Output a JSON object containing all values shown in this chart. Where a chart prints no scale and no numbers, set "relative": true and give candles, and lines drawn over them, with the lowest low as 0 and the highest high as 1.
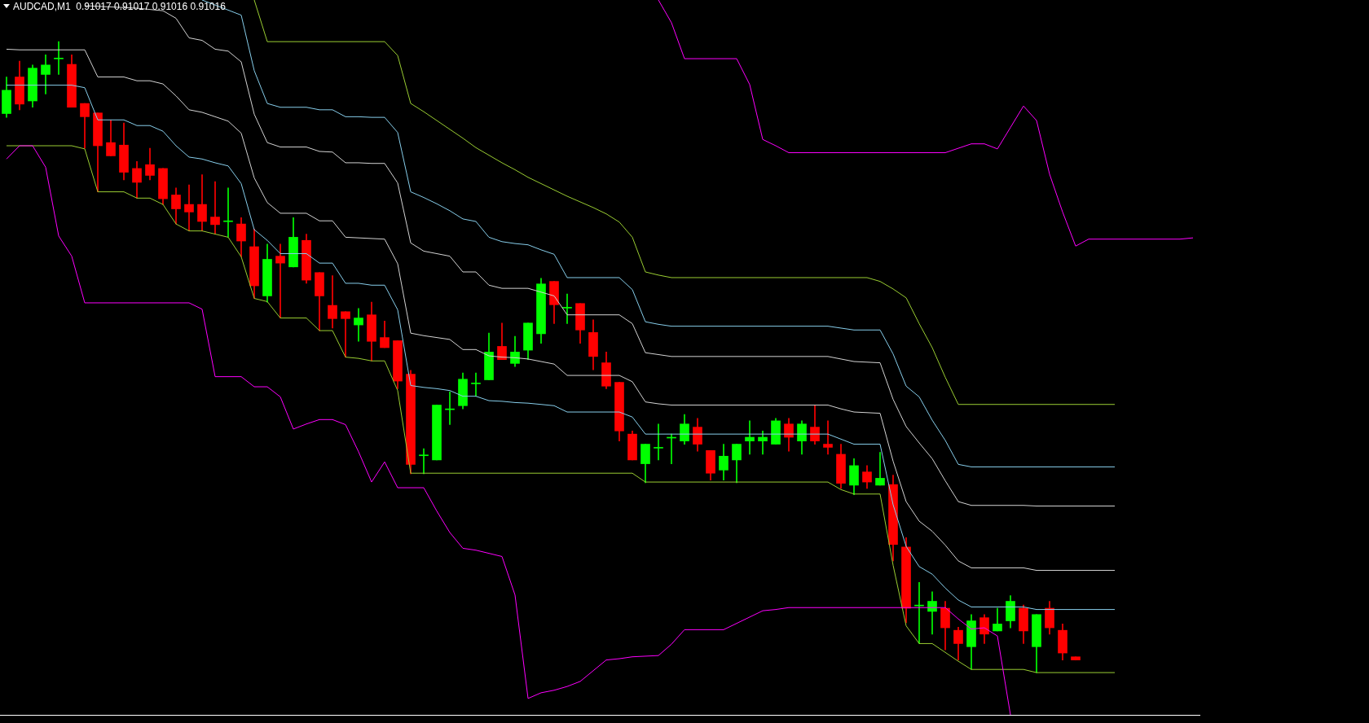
{
  "chart_data": {
    "type": "candlestick",
    "title": "AUDCAD,M1  0.91017 0.91017 0.91016 0.91016",
    "relative": true,
    "tick_labels": false,
    "categories": [
      null,
      null,
      null,
      null,
      null,
      null,
      null,
      null,
      null,
      null,
      null,
      null,
      null,
      null,
      null,
      null,
      null,
      null,
      null,
      null,
      null,
      null,
      null,
      null,
      null,
      null,
      null,
      null,
      null,
      null,
      null,
      null,
      null,
      null,
      null,
      null,
      null,
      null,
      null,
      null,
      null,
      null,
      null,
      null,
      null,
      null,
      null,
      null,
      null,
      null,
      null,
      null,
      null,
      null,
      null,
      null,
      null,
      null,
      null,
      null,
      null,
      null,
      null,
      null,
      null,
      null,
      null,
      null,
      null,
      null,
      null,
      null,
      null,
      null,
      null,
      null,
      null,
      null,
      null,
      null,
      null,
      null,
      null,
      null,
      null,
      null,
      null,
      null,
      null,
      null,
      null,
      null
    ],
    "ohlc": [
      [
        0.886,
        0.944,
        0.88,
        0.923
      ],
      [
        0.944,
        0.969,
        0.892,
        0.901
      ],
      [
        0.906,
        0.963,
        0.896,
        0.958
      ],
      [
        0.948,
        0.979,
        0.917,
        0.963
      ],
      [
        0.974,
        1,
        0.948,
        0.974
      ],
      [
        0.964,
        0.979,
        0.896,
        0.896
      ],
      [
        0.902,
        0.902,
        0.831,
        0.881
      ],
      [
        0.887,
        0.887,
        0.762,
        0.835
      ],
      [
        0.84,
        0.876,
        0.819,
        0.819
      ],
      [
        0.836,
        0.871,
        0.781,
        0.793
      ],
      [
        0.799,
        0.81,
        0.752,
        0.777
      ],
      [
        0.805,
        0.831,
        0.781,
        0.788
      ],
      [
        0.799,
        0.799,
        0.742,
        0.751
      ],
      [
        0.757,
        0.768,
        0.711,
        0.735
      ],
      [
        0.742,
        0.773,
        0.7,
        0.73
      ],
      [
        0.742,
        0.789,
        0.7,
        0.715
      ],
      [
        0.722,
        0.778,
        0.695,
        0.71
      ],
      [
        0.716,
        0.768,
        0.69,
        0.716
      ],
      [
        0.711,
        0.721,
        0.659,
        0.684
      ],
      [
        0.675,
        0.703,
        0.593,
        0.613
      ],
      [
        0.597,
        0.679,
        0.587,
        0.655
      ],
      [
        0.66,
        0.679,
        0.562,
        0.649
      ],
      [
        0.643,
        0.721,
        0.643,
        0.69
      ],
      [
        0.685,
        0.695,
        0.617,
        0.622
      ],
      [
        0.634,
        0.634,
        0.542,
        0.597
      ],
      [
        0.582,
        0.629,
        0.546,
        0.561
      ],
      [
        0.572,
        0.572,
        0.5,
        0.561
      ],
      [
        0.551,
        0.577,
        0.525,
        0.562
      ],
      [
        0.567,
        0.587,
        0.494,
        0.525
      ],
      [
        0.531,
        0.557,
        0.515,
        0.515
      ],
      [
        0.526,
        0.526,
        0.45,
        0.462
      ],
      [
        0.473,
        0.479,
        0.315,
        0.33
      ],
      [
        0.345,
        0.355,
        0.315,
        0.345
      ],
      [
        0.337,
        0.424,
        0.337,
        0.424
      ],
      [
        0.418,
        0.445,
        0.393,
        0.418
      ],
      [
        0.423,
        0.475,
        0.418,
        0.465
      ],
      [
        0.459,
        0.475,
        0.438,
        0.459
      ],
      [
        0.464,
        0.538,
        0.464,
        0.508
      ],
      [
        0.517,
        0.554,
        0.496,
        0.496
      ],
      [
        0.49,
        0.533,
        0.485,
        0.508
      ],
      [
        0.511,
        0.554,
        0.496,
        0.554
      ],
      [
        0.537,
        0.625,
        0.522,
        0.616
      ],
      [
        0.62,
        0.62,
        0.553,
        0.583
      ],
      [
        0.579,
        0.6,
        0.553,
        0.579
      ],
      [
        0.585,
        0.585,
        0.522,
        0.543
      ],
      [
        0.539,
        0.559,
        0.48,
        0.501
      ],
      [
        0.491,
        0.508,
        0.45,
        0.454
      ],
      [
        0.46,
        0.46,
        0.367,
        0.383
      ],
      [
        0.378,
        0.383,
        0.337,
        0.337
      ],
      [
        0.331,
        0.362,
        0.301,
        0.362
      ],
      [
        0.357,
        0.394,
        0.337,
        0.357
      ],
      [
        0.373,
        0.378,
        0.331,
        0.373
      ],
      [
        0.367,
        0.409,
        0.362,
        0.394
      ],
      [
        0.389,
        0.403,
        0.351,
        0.362
      ],
      [
        0.352,
        0.352,
        0.305,
        0.316
      ],
      [
        0.321,
        0.362,
        0.305,
        0.343
      ],
      [
        0.337,
        0.362,
        0.301,
        0.362
      ],
      [
        0.367,
        0.399,
        0.346,
        0.373
      ],
      [
        0.367,
        0.383,
        0.346,
        0.373
      ],
      [
        0.362,
        0.403,
        0.362,
        0.399
      ],
      [
        0.394,
        0.403,
        0.351,
        0.373
      ],
      [
        0.367,
        0.399,
        0.346,
        0.394
      ],
      [
        0.389,
        0.423,
        0.362,
        0.367
      ],
      [
        0.362,
        0.399,
        0.346,
        0.357
      ],
      [
        0.346,
        0.362,
        0.292,
        0.3
      ],
      [
        0.297,
        0.339,
        0.282,
        0.328
      ],
      [
        0.318,
        0.328,
        0.292,
        0.302
      ],
      [
        0.297,
        0.349,
        0.297,
        0.308
      ],
      [
        0.298,
        0.313,
        0.177,
        0.203
      ],
      [
        0.199,
        0.214,
        0.079,
        0.102
      ],
      [
        0.107,
        0.143,
        0.046,
        0.107
      ],
      [
        0.097,
        0.128,
        0.061,
        0.113
      ],
      [
        0.102,
        0.113,
        0.036,
        0.071
      ],
      [
        0.067,
        0.072,
        0.02,
        0.046
      ],
      [
        0.041,
        0.092,
        0.005,
        0.082
      ],
      [
        0.087,
        0.092,
        0.046,
        0.061
      ],
      [
        0.066,
        0.102,
        0.066,
        0.077
      ],
      [
        0.082,
        0.122,
        0.071,
        0.113
      ],
      [
        0.102,
        0.107,
        0.046,
        0.066
      ],
      [
        0.041,
        0.092,
        0,
        0.092
      ],
      [
        0.102,
        0.113,
        0.061,
        0.071
      ],
      [
        0.067,
        0.077,
        0.02,
        0.031
      ],
      [
        0.025,
        0.025,
        0.02,
        0.02
      ],
      null,
      null,
      null,
      null,
      null,
      null,
      null,
      null,
      null
    ],
    "colors": [
      "#00ff00",
      "#ff0000",
      "#00ff00",
      "#00ff00",
      "#00ff00",
      "#ff0000",
      "#ff0000",
      "#ff0000",
      "#ff0000",
      "#ff0000",
      "#ff0000",
      "#ff0000",
      "#ff0000",
      "#ff0000",
      "#ff0000",
      "#ff0000",
      "#ff0000",
      "#00ff00",
      "#ff0000",
      "#ff0000",
      "#00ff00",
      "#ff0000",
      "#00ff00",
      "#ff0000",
      "#ff0000",
      "#ff0000",
      "#ff0000",
      "#00ff00",
      "#ff0000",
      "#ff0000",
      "#ff0000",
      "#ff0000",
      "#00ff00",
      "#00ff00",
      "#00ff00",
      "#00ff00",
      "#00ff00",
      "#00ff00",
      "#ff0000",
      "#00ff00",
      "#00ff00",
      "#00ff00",
      "#ff0000",
      "#00ff00",
      "#ff0000",
      "#ff0000",
      "#ff0000",
      "#ff0000",
      "#ff0000",
      "#00ff00",
      "#00ff00",
      "#00ff00",
      "#00ff00",
      "#ff0000",
      "#ff0000",
      "#00ff00",
      "#00ff00",
      "#00ff00",
      "#00ff00",
      "#00ff00",
      "#ff0000",
      "#00ff00",
      "#ff0000",
      "#ff0000",
      "#ff0000",
      "#00ff00",
      "#ff0000",
      "#00ff00",
      "#ff0000",
      "#ff0000",
      "#00ff00",
      "#00ff00",
      "#ff0000",
      "#ff0000",
      "#00ff00",
      "#ff0000",
      "#00ff00",
      "#00ff00",
      "#ff0000",
      "#00ff00",
      "#ff0000",
      "#ff0000",
      "#ff0000",
      null,
      null,
      null,
      null,
      null,
      null,
      null,
      null,
      null
    ],
    "series": [
      {
        "type": "line",
        "color": "#ff00ff",
        "values": [
          0.814,
          0.835,
          0.835,
          0.801,
          0.692,
          0.66,
          0.586,
          0.586,
          0.586,
          0.586,
          0.586,
          0.586,
          0.586,
          0.586,
          0.586,
          0.576,
          0.469,
          0.469,
          0.469,
          0.453,
          0.453,
          0.437,
          0.386,
          0.394,
          0.401,
          0.401,
          0.393,
          0.35,
          0.302,
          0.334,
          0.293,
          0.293,
          0.293,
          0.256,
          0.222,
          0.197,
          0.194,
          0.189,
          0.184,
          0.123,
          -0.041,
          -0.032,
          -0.028,
          -0.022,
          -0.014,
          0.003,
          0.02,
          0.022,
          0.025,
          0.026,
          0.027,
          0.045,
          0.068,
          0.068,
          0.068,
          0.068,
          0.078,
          0.088,
          0.098,
          0.1,
          0.103,
          0.103,
          0.103,
          0.103,
          0.103,
          0.103,
          0.103,
          0.103,
          0.103,
          0.103,
          0.103,
          0.103,
          0.103,
          0.085,
          0.069,
          0.071,
          0.058,
          -0.067,
          null,
          null,
          null,
          null,
          null,
          null,
          null,
          null,
          null,
          null,
          null,
          null,
          null,
          null
        ]
      },
      {
        "type": "line",
        "color": "#9acd32",
        "values": [
          0.835,
          0.835,
          0.835,
          0.835,
          0.835,
          0.835,
          0.83,
          0.762,
          0.762,
          0.762,
          0.752,
          0.752,
          0.742,
          0.711,
          0.7,
          0.7,
          0.695,
          0.69,
          0.659,
          0.593,
          0.588,
          0.562,
          0.562,
          0.562,
          0.542,
          0.542,
          0.5,
          0.498,
          0.494,
          0.494,
          0.447,
          0.316,
          0.316,
          0.316,
          0.316,
          0.316,
          0.316,
          0.316,
          0.316,
          0.316,
          0.316,
          0.316,
          0.316,
          0.316,
          0.316,
          0.316,
          0.316,
          0.316,
          0.316,
          0.302,
          0.302,
          0.302,
          0.302,
          0.302,
          0.302,
          0.302,
          0.302,
          0.302,
          0.302,
          0.302,
          0.302,
          0.302,
          0.302,
          0.302,
          0.29,
          0.283,
          0.283,
          0.283,
          0.17,
          0.074,
          0.046,
          0.046,
          0.032,
          0.018,
          0.005,
          0.005,
          0.005,
          0.005,
          0.005,
          0,
          0,
          0,
          0,
          0,
          0,
          0,
          null,
          null,
          null,
          null,
          null,
          null
        ]
      },
      {
        "type": "line",
        "color": "#87ceeb",
        "values": [
          0.931,
          0.931,
          0.931,
          0.931,
          0.931,
          0.931,
          0.927,
          0.876,
          0.876,
          0.876,
          0.867,
          0.867,
          0.858,
          0.835,
          0.817,
          0.814,
          0.808,
          0.803,
          0.775,
          0.702,
          0.685,
          0.664,
          0.664,
          0.664,
          0.649,
          0.649,
          0.617,
          0.617,
          0.614,
          0.614,
          0.575,
          0.455,
          0.452,
          0.45,
          0.447,
          0.438,
          0.438,
          0.431,
          0.43,
          0.428,
          0.427,
          0.425,
          0.423,
          0.413,
          0.413,
          0.413,
          0.413,
          0.413,
          0.405,
          0.378,
          0.378,
          0.378,
          0.378,
          0.378,
          0.378,
          0.378,
          0.378,
          0.378,
          0.378,
          0.378,
          0.378,
          0.378,
          0.378,
          0.378,
          0.37,
          0.362,
          0.362,
          0.362,
          0.266,
          0.2,
          0.168,
          0.156,
          0.134,
          0.115,
          0.104,
          0.104,
          0.104,
          0.104,
          0.104,
          0.1,
          0.1,
          0.1,
          0.1,
          0.1,
          0.1,
          0.1,
          null,
          null,
          null,
          null,
          null,
          null
        ]
      },
      {
        "type": "line",
        "color": "#d3d3d3",
        "values": [
          0.988,
          0.987,
          0.987,
          0.987,
          0.987,
          0.987,
          0.987,
          0.944,
          0.944,
          0.944,
          0.938,
          0.938,
          0.933,
          0.914,
          0.892,
          0.888,
          0.881,
          0.874,
          0.855,
          0.784,
          0.745,
          0.728,
          0.728,
          0.728,
          0.716,
          0.716,
          0.69,
          0.689,
          0.688,
          0.687,
          0.648,
          0.538,
          0.534,
          0.531,
          0.528,
          0.512,
          0.512,
          0.502,
          0.5,
          0.499,
          0.497,
          0.493,
          0.489,
          0.471,
          0.471,
          0.471,
          0.471,
          0.471,
          0.461,
          0.429,
          0.426,
          0.424,
          0.424,
          0.424,
          0.424,
          0.424,
          0.424,
          0.424,
          0.424,
          0.424,
          0.424,
          0.424,
          0.424,
          0.424,
          0.418,
          0.413,
          0.412,
          0.411,
          0.335,
          0.271,
          0.24,
          0.224,
          0.202,
          0.177,
          0.166,
          0.166,
          0.166,
          0.166,
          0.166,
          0.162,
          0.162,
          0.162,
          0.162,
          0.162,
          0.162,
          0.162,
          null,
          null,
          null,
          null,
          null,
          null
        ]
      },
      {
        "type": "line",
        "color": "#d3d3d3",
        "values": [
          null,
          null,
          null,
          null,
          null,
          null,
          1.057,
          1.056,
          1.055,
          1.054,
          1.053,
          1.051,
          1.049,
          1.037,
          1.006,
          1.002,
          0.988,
          0.985,
          0.968,
          0.885,
          0.84,
          0.833,
          0.833,
          0.833,
          0.826,
          0.825,
          0.808,
          0.808,
          0.807,
          0.807,
          0.776,
          0.681,
          0.668,
          0.664,
          0.66,
          0.635,
          0.635,
          0.614,
          0.609,
          0.609,
          0.609,
          0.603,
          0.597,
          0.567,
          0.567,
          0.567,
          0.567,
          0.567,
          0.553,
          0.507,
          0.504,
          0.501,
          0.501,
          0.501,
          0.501,
          0.501,
          0.501,
          0.501,
          0.501,
          0.501,
          0.501,
          0.501,
          0.501,
          0.501,
          0.497,
          0.493,
          0.492,
          0.491,
          0.433,
          0.39,
          0.364,
          0.339,
          0.304,
          0.271,
          0.265,
          0.265,
          0.265,
          0.265,
          0.265,
          0.264,
          0.264,
          0.264,
          0.264,
          0.264,
          0.264,
          0.264,
          null,
          null,
          null,
          null,
          null,
          null
        ]
      },
      {
        "type": "line",
        "color": "#87ceeb",
        "values": [
          null,
          null,
          null,
          null,
          null,
          null,
          null,
          null,
          null,
          null,
          null,
          null,
          null,
          null,
          null,
          1.066,
          1.058,
          1.05,
          1.042,
          0.954,
          0.902,
          0.896,
          0.896,
          0.896,
          0.892,
          0.892,
          0.881,
          0.881,
          0.88,
          0.88,
          0.856,
          0.762,
          0.753,
          0.743,
          0.732,
          0.719,
          0.715,
          0.69,
          0.683,
          0.68,
          0.678,
          0.67,
          0.663,
          0.626,
          0.626,
          0.626,
          0.626,
          0.626,
          0.607,
          0.556,
          0.552,
          0.549,
          0.549,
          0.549,
          0.549,
          0.549,
          0.549,
          0.549,
          0.549,
          0.549,
          0.549,
          0.549,
          0.549,
          0.549,
          0.546,
          0.543,
          0.543,
          0.543,
          0.505,
          0.454,
          0.437,
          0.4,
          0.368,
          0.33,
          0.326,
          0.326,
          0.326,
          0.326,
          0.326,
          0.326,
          0.326,
          0.326,
          0.326,
          0.326,
          0.326,
          0.326,
          null,
          null,
          null,
          null,
          null,
          null
        ]
      },
      {
        "type": "line",
        "color": "#9acd32",
        "values": [
          null,
          null,
          null,
          null,
          null,
          null,
          null,
          null,
          null,
          null,
          null,
          null,
          null,
          null,
          null,
          null,
          null,
          null,
          null,
          1.066,
          1.0,
          1.0,
          1.0,
          1.0,
          1.0,
          1.0,
          1.0,
          1.0,
          1.0,
          1.0,
          0.978,
          0.902,
          0.889,
          0.875,
          0.861,
          0.847,
          0.832,
          0.82,
          0.808,
          0.797,
          0.785,
          0.775,
          0.765,
          0.755,
          0.746,
          0.737,
          0.727,
          0.714,
          0.69,
          0.635,
          0.63,
          0.626,
          0.626,
          0.626,
          0.626,
          0.626,
          0.626,
          0.626,
          0.626,
          0.626,
          0.626,
          0.626,
          0.626,
          0.626,
          0.626,
          0.626,
          0.626,
          0.62,
          0.608,
          0.594,
          0.553,
          0.515,
          0.468,
          0.425,
          0.425,
          0.425,
          0.425,
          0.425,
          0.425,
          0.425,
          0.425,
          0.425,
          0.425,
          0.425,
          0.425,
          0.425,
          null,
          null,
          null,
          null,
          null,
          null
        ]
      },
      {
        "type": "line",
        "color": "#ff00ff",
        "values": [
          null,
          null,
          null,
          null,
          null,
          null,
          null,
          null,
          null,
          null,
          null,
          null,
          null,
          null,
          null,
          null,
          null,
          null,
          null,
          null,
          null,
          null,
          null,
          null,
          null,
          null,
          null,
          null,
          null,
          null,
          null,
          null,
          null,
          null,
          null,
          null,
          null,
          null,
          null,
          null,
          null,
          null,
          null,
          null,
          null,
          null,
          null,
          null,
          null,
          null,
          1.066,
          1.03,
          0.973,
          0.973,
          0.973,
          0.973,
          0.973,
          0.932,
          0.845,
          0.835,
          0.824,
          0.824,
          0.824,
          0.824,
          0.824,
          0.824,
          0.824,
          0.824,
          0.824,
          0.824,
          0.824,
          0.824,
          0.824,
          0.831,
          0.838,
          0.838,
          0.83,
          0.864,
          0.898,
          0.875,
          0.79,
          0.73,
          0.676,
          0.687,
          0.687,
          0.687,
          0.687,
          0.687,
          0.687,
          0.687,
          0.687,
          0.689
        ]
      }
    ]
  }
}
